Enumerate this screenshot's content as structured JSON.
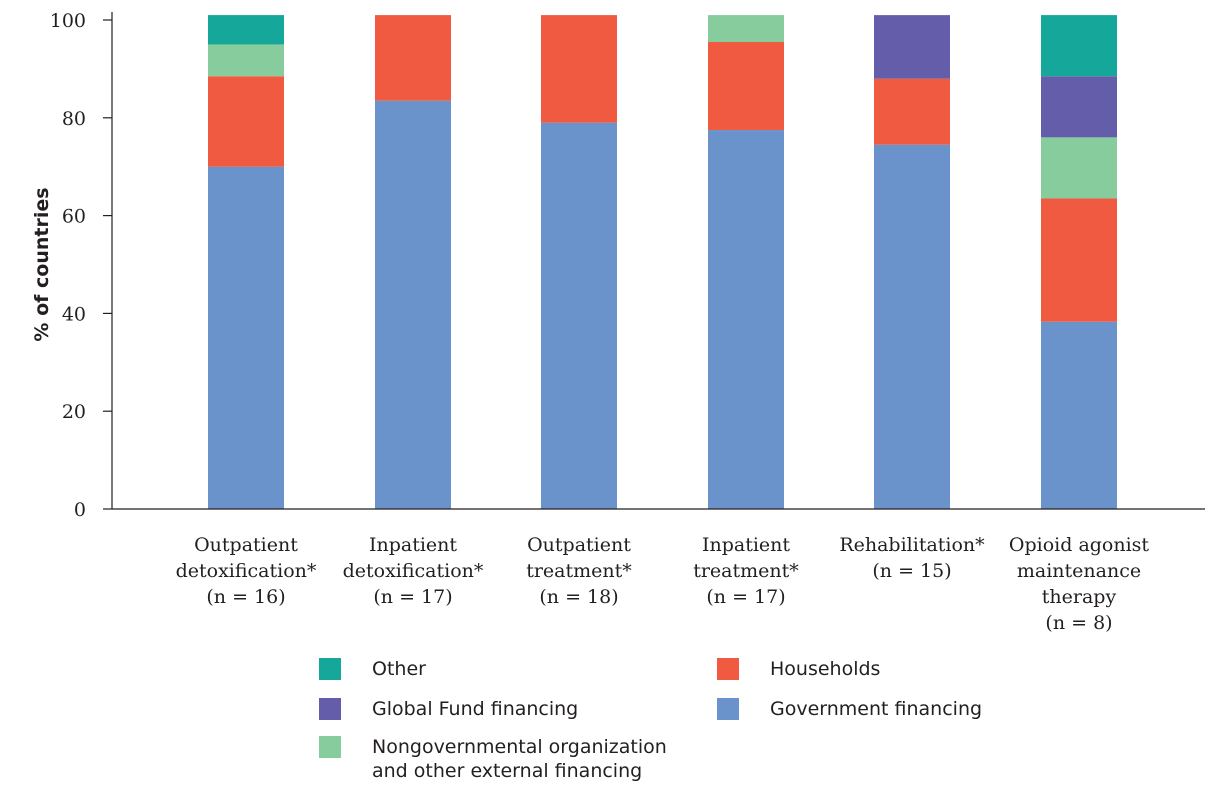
{
  "chart_data": {
    "type": "bar",
    "stacked": true,
    "categories": [
      {
        "lines": [
          "Outpatient",
          "detoxification*",
          "(n = 16)"
        ]
      },
      {
        "lines": [
          "Inpatient",
          "detoxification*",
          "(n = 17)"
        ]
      },
      {
        "lines": [
          "Outpatient",
          "treatment*",
          "(n = 18)"
        ]
      },
      {
        "lines": [
          "Inpatient",
          "treatment*",
          "(n = 17)"
        ]
      },
      {
        "lines": [
          "Rehabilitation*",
          "(n = 15)"
        ]
      },
      {
        "lines": [
          "Opioid agonist",
          "maintenance",
          "therapy",
          "(n = 8)"
        ]
      }
    ],
    "series": [
      {
        "name": "Government financing",
        "color": "#6a93cc",
        "values": [
          70,
          83.5,
          79,
          77.5,
          74.5,
          38.3
        ]
      },
      {
        "name": "Households",
        "color": "#f05a40",
        "values": [
          18.5,
          17.5,
          22,
          18,
          13.5,
          25.2
        ]
      },
      {
        "name": "Nongovernmental organization and other external financing",
        "color": "#86cc9d",
        "values": [
          6.5,
          0,
          0,
          5.5,
          0,
          12.5
        ]
      },
      {
        "name": "Global Fund financing",
        "color": "#645eaa",
        "values": [
          0,
          0,
          0,
          0,
          13,
          12.5
        ]
      },
      {
        "name": "Other",
        "color": "#14a79a",
        "values": [
          6,
          0,
          0,
          0,
          0,
          12.5
        ]
      }
    ],
    "ylabel": "% of countries",
    "ylim": [
      0,
      100
    ],
    "yticks": [
      0,
      20,
      40,
      60,
      80,
      100
    ],
    "grid": false,
    "legend_position": "bottom"
  },
  "legend": {
    "other": "Other",
    "global_fund": "Global Fund financing",
    "ngo_line1": "Nongovernmental organization",
    "ngo_line2": "and other external financing",
    "households": "Households",
    "government": "Government financing"
  }
}
